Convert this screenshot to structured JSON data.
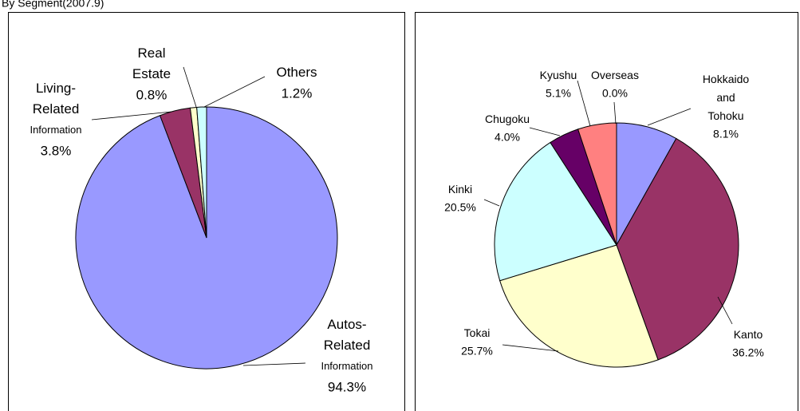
{
  "chart_data": [
    {
      "type": "pie",
      "title": "By Segment(2007.9)",
      "categories": [
        "Autos-\nRelated\nInformation",
        "Living-\nRelated\nInformation",
        "Real\nEstate",
        "Others"
      ],
      "values": [
        94.3,
        3.8,
        0.8,
        1.2
      ],
      "value_labels": [
        "94.3%",
        "3.8%",
        "0.8%",
        "1.2%"
      ],
      "colors": [
        "#9999ff",
        "#993366",
        "#ffffcc",
        "#ccffff"
      ]
    },
    {
      "type": "pie",
      "categories": [
        "Hokkaido\nand\nTohoku",
        "Kanto",
        "Tokai",
        "Kinki",
        "Chugoku",
        "Kyushu",
        "Overseas"
      ],
      "values": [
        8.1,
        36.2,
        25.7,
        20.5,
        4.0,
        5.1,
        0.0
      ],
      "value_labels": [
        "8.1%",
        "36.2%",
        "25.7%",
        "20.5%",
        "4.0%",
        "5.1%",
        "0.0%"
      ],
      "colors": [
        "#9999ff",
        "#993366",
        "#ffffcc",
        "#ccffff",
        "#660066",
        "#ff8080",
        "#0066cc"
      ]
    }
  ]
}
